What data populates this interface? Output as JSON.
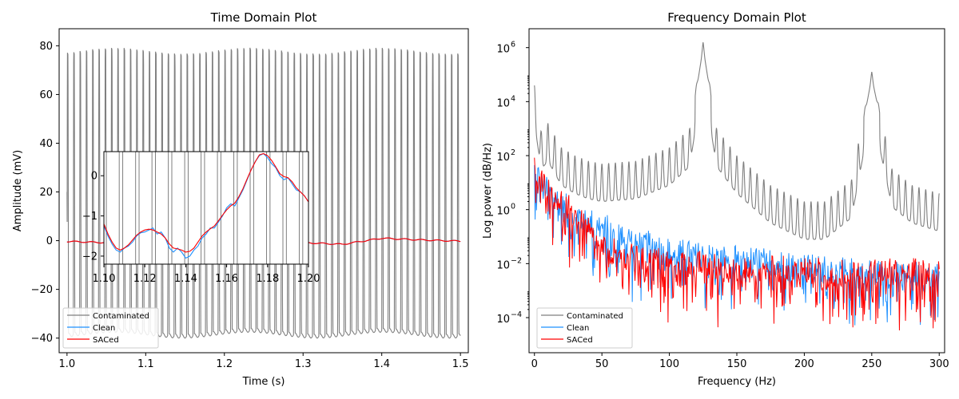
{
  "figure": {
    "background": "#ffffff"
  },
  "chart_data": [
    {
      "type": "line",
      "title": "Time Domain Plot",
      "xlabel": "Time (s)",
      "ylabel": "Amplitude (mV)",
      "xlim": [
        0.99,
        1.51
      ],
      "ylim": [
        -46,
        87
      ],
      "xticks": [
        1.0,
        1.1,
        1.2,
        1.3,
        1.4,
        1.5
      ],
      "xtick_labels": [
        "1.0",
        "1.1",
        "1.2",
        "1.3",
        "1.4",
        "1.5"
      ],
      "yticks": [
        -40,
        -20,
        0,
        20,
        40,
        60,
        80
      ],
      "ytick_labels": [
        "−40",
        "−20",
        "0",
        "20",
        "40",
        "60",
        "80"
      ],
      "legend": {
        "position": "lower-left",
        "entries": [
          "Contaminated",
          "Clean",
          "SACed"
        ]
      },
      "series": [
        {
          "name": "Contaminated",
          "color": "#7f7f7f",
          "description_values": {
            "oscillation_hz": 125,
            "max": 80.5,
            "min": -39,
            "first_value": 20
          }
        },
        {
          "name": "Clean",
          "color": "#1e90ff",
          "x": [
            1.0,
            1.05,
            1.1,
            1.15,
            1.2,
            1.25,
            1.3,
            1.35,
            1.4,
            1.45,
            1.5
          ],
          "y": [
            -0.3,
            -0.8,
            -0.9,
            -1.3,
            -0.6,
            -0.9,
            -0.8,
            -1.5,
            1.0,
            0.3,
            -0.2
          ]
        },
        {
          "name": "SACed",
          "color": "#ff0000",
          "x": [
            1.0,
            1.05,
            1.1,
            1.15,
            1.2,
            1.25,
            1.3,
            1.35,
            1.4,
            1.45,
            1.5
          ],
          "y": [
            -0.3,
            -0.8,
            -0.9,
            -1.3,
            -0.6,
            -0.9,
            -0.8,
            -1.5,
            1.0,
            0.3,
            -0.2
          ]
        }
      ],
      "inset": {
        "xlim": [
          1.1,
          1.2
        ],
        "ylim": [
          -2.2,
          0.6
        ],
        "xticks": [
          1.1,
          1.12,
          1.14,
          1.16,
          1.18,
          1.2
        ],
        "xtick_labels": [
          "1.10",
          "1.12",
          "1.14",
          "1.16",
          "1.18",
          "1.20"
        ],
        "yticks": [
          -2,
          -1,
          0
        ],
        "ytick_labels": [
          "−2",
          "−1",
          "0"
        ],
        "clean": {
          "x": [
            1.1,
            1.102,
            1.104,
            1.106,
            1.108,
            1.11,
            1.112,
            1.114,
            1.116,
            1.118,
            1.12,
            1.122,
            1.124,
            1.126,
            1.128,
            1.13,
            1.132,
            1.134,
            1.136,
            1.138,
            1.14,
            1.142,
            1.144,
            1.146,
            1.148,
            1.15,
            1.152,
            1.154,
            1.156,
            1.158,
            1.16,
            1.162,
            1.164,
            1.166,
            1.168,
            1.17,
            1.172,
            1.174,
            1.176,
            1.178,
            1.18,
            1.182,
            1.184,
            1.186,
            1.188,
            1.19,
            1.192,
            1.194,
            1.196,
            1.198,
            1.2
          ],
          "y": [
            -1.25,
            -1.5,
            -1.7,
            -1.85,
            -1.9,
            -1.8,
            -1.75,
            -1.65,
            -1.5,
            -1.42,
            -1.4,
            -1.35,
            -1.3,
            -1.45,
            -1.4,
            -1.55,
            -1.8,
            -1.9,
            -1.8,
            -1.9,
            -2.05,
            -2.0,
            -1.85,
            -1.75,
            -1.55,
            -1.45,
            -1.3,
            -1.3,
            -1.15,
            -1.0,
            -0.8,
            -0.7,
            -0.75,
            -0.55,
            -0.35,
            -0.1,
            0.15,
            0.35,
            0.5,
            0.55,
            0.45,
            0.3,
            0.2,
            0.0,
            -0.1,
            -0.05,
            -0.2,
            -0.35,
            -0.4,
            -0.5,
            -0.65
          ]
        },
        "saced": {
          "x": [
            1.1,
            1.102,
            1.104,
            1.106,
            1.108,
            1.11,
            1.112,
            1.114,
            1.116,
            1.118,
            1.12,
            1.122,
            1.124,
            1.126,
            1.128,
            1.13,
            1.132,
            1.134,
            1.136,
            1.138,
            1.14,
            1.142,
            1.144,
            1.146,
            1.148,
            1.15,
            1.152,
            1.154,
            1.156,
            1.158,
            1.16,
            1.162,
            1.164,
            1.166,
            1.168,
            1.17,
            1.172,
            1.174,
            1.176,
            1.178,
            1.18,
            1.182,
            1.184,
            1.186,
            1.188,
            1.19,
            1.192,
            1.194,
            1.196,
            1.198,
            1.2
          ],
          "y": [
            -1.2,
            -1.45,
            -1.65,
            -1.8,
            -1.85,
            -1.8,
            -1.72,
            -1.6,
            -1.48,
            -1.4,
            -1.35,
            -1.33,
            -1.35,
            -1.4,
            -1.45,
            -1.55,
            -1.7,
            -1.8,
            -1.82,
            -1.85,
            -1.9,
            -1.88,
            -1.8,
            -1.65,
            -1.5,
            -1.4,
            -1.32,
            -1.25,
            -1.12,
            -0.98,
            -0.85,
            -0.75,
            -0.68,
            -0.52,
            -0.32,
            -0.08,
            0.15,
            0.35,
            0.52,
            0.55,
            0.5,
            0.38,
            0.22,
            0.05,
            -0.02,
            -0.05,
            -0.15,
            -0.3,
            -0.4,
            -0.5,
            -0.65
          ]
        }
      }
    },
    {
      "type": "line",
      "title": "Frequency Domain Plot",
      "xlabel": "Frequency (Hz)",
      "ylabel": "Log power (dB/Hz)",
      "xscale": "linear",
      "yscale": "log",
      "xlim": [
        -4,
        304
      ],
      "ylim_log10": [
        -5.3,
        6.7
      ],
      "xticks": [
        0,
        50,
        100,
        150,
        200,
        250,
        300
      ],
      "xtick_labels": [
        "0",
        "50",
        "100",
        "150",
        "200",
        "250",
        "300"
      ],
      "yticks_log10": [
        -4,
        -2,
        0,
        2,
        4,
        6
      ],
      "ytick_labels": [
        "10",
        "10",
        "10",
        "10",
        "10",
        "10"
      ],
      "ytick_exponents": [
        "−4",
        "−2",
        "0",
        "2",
        "4",
        "6"
      ],
      "legend": {
        "position": "lower-left",
        "entries": [
          "Contaminated",
          "Clean",
          "SACed"
        ]
      },
      "series": [
        {
          "name": "Contaminated",
          "color": "#7f7f7f",
          "x": [
            0,
            5,
            10,
            20,
            30,
            40,
            50,
            75,
            100,
            115,
            125,
            135,
            150,
            175,
            200,
            215,
            235,
            250,
            265,
            280,
            300
          ],
          "log10_y_envelope": [
            4.6,
            2.9,
            3.2,
            2.3,
            2.0,
            1.8,
            1.7,
            1.8,
            2.3,
            3.0,
            6.2,
            3.0,
            2.0,
            0.9,
            0.3,
            0.3,
            1.1,
            5.1,
            1.5,
            0.9,
            0.6
          ]
        },
        {
          "name": "Clean",
          "color": "#1e90ff",
          "x": [
            0,
            10,
            25,
            40,
            50,
            75,
            100,
            125,
            150,
            175,
            200,
            225,
            250,
            275,
            300
          ],
          "log10_y_level": [
            1.5,
            0.7,
            0.1,
            -0.4,
            -0.6,
            -1.1,
            -1.5,
            -1.7,
            -1.8,
            -1.9,
            -2.1,
            -2.2,
            -2.3,
            -2.4,
            -2.4
          ]
        },
        {
          "name": "SACed",
          "color": "#ff0000",
          "x": [
            0,
            10,
            25,
            40,
            50,
            75,
            100,
            125,
            150,
            175,
            200,
            225,
            250,
            275,
            300
          ],
          "log10_y_level": [
            1.5,
            0.8,
            0.1,
            -0.8,
            -1.4,
            -1.8,
            -1.9,
            -2.0,
            -2.1,
            -2.2,
            -2.2,
            -2.3,
            -2.3,
            -2.3,
            -2.2
          ]
        }
      ]
    }
  ]
}
